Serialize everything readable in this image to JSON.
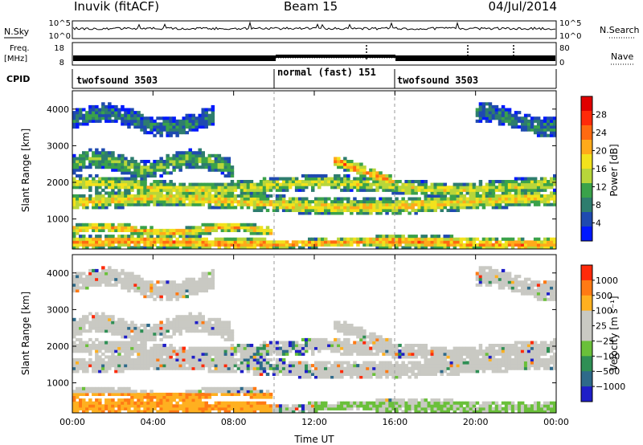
{
  "header": {
    "station": "Inuvik (fitACF)",
    "beam": "Beam 15",
    "date": "04/Jul/2014"
  },
  "top_panels": {
    "nsky_label": "N.Sky",
    "nsky_ticks": [
      "10^5",
      "10^0"
    ],
    "nsearch_label": "N.Search",
    "nsearch_ticks": [
      "10^5",
      "10^0"
    ],
    "freq_label_1": "Freq.",
    "freq_label_2": "[MHz]",
    "freq_ticks": [
      "18",
      "8"
    ],
    "nave_label": "Nave",
    "nave_ticks": [
      "80",
      "0"
    ],
    "cpid_label": "CPID",
    "cpid_segments": [
      {
        "label": "twofsound 3503",
        "start_hour": 0,
        "end_hour": 10
      },
      {
        "label": "normal (fast) 151",
        "start_hour": 10,
        "end_hour": 16
      },
      {
        "label": "twofsound 3503",
        "start_hour": 16,
        "end_hour": 24
      }
    ]
  },
  "chart_data": [
    {
      "type": "heatmap",
      "title": "",
      "xlabel": "Time UT",
      "ylabel": "Slant Range [km]",
      "xlim": [
        0,
        24
      ],
      "ylim": [
        180,
        4500
      ],
      "x_ticks": [
        "00:00",
        "04:00",
        "08:00",
        "12:00",
        "16:00",
        "20:00",
        "00:00"
      ],
      "x_tick_hours": [
        0,
        4,
        8,
        12,
        16,
        20,
        24
      ],
      "y_ticks": [
        "1000",
        "2000",
        "3000",
        "4000"
      ],
      "y_tick_values": [
        1000,
        2000,
        3000,
        4000
      ],
      "colorbar_label": "Power [dB]",
      "colorbar_ticks": [
        "28",
        "24",
        "20",
        "16",
        "12",
        "8",
        "4"
      ],
      "colorbar_tick_values": [
        28,
        24,
        20,
        16,
        12,
        8,
        4
      ],
      "colorscale": [
        "#0018ff",
        "#1f4ab0",
        "#2e7d6e",
        "#3aa24a",
        "#b8d63a",
        "#f2e21c",
        "#ffaa1a",
        "#ff6a10",
        "#ff2a0a",
        "#e00000"
      ],
      "clim": [
        0,
        32
      ]
    },
    {
      "type": "heatmap",
      "title": "",
      "xlabel": "Time UT",
      "ylabel": "Slant Range [km]",
      "xlim": [
        0,
        24
      ],
      "ylim": [
        180,
        4500
      ],
      "x_ticks": [
        "00:00",
        "04:00",
        "08:00",
        "12:00",
        "16:00",
        "20:00",
        "00:00"
      ],
      "x_tick_hours": [
        0,
        4,
        8,
        12,
        16,
        20,
        24
      ],
      "y_ticks": [
        "1000",
        "2000",
        "3000",
        "4000"
      ],
      "y_tick_values": [
        1000,
        2000,
        3000,
        4000
      ],
      "colorbar_label": "Velocity [m s⁻¹]",
      "colorbar_ticks": [
        "1000",
        "500",
        "100",
        "25",
        "−25",
        "−100",
        "−500",
        "−1000"
      ],
      "colorscale": [
        "#1e1ec8",
        "#2e6a8a",
        "#2f8f55",
        "#6ac03a",
        "#c9c9c3",
        "#c9c9c3",
        "#ffb020",
        "#ff7a14",
        "#ff2a0a"
      ]
    }
  ]
}
